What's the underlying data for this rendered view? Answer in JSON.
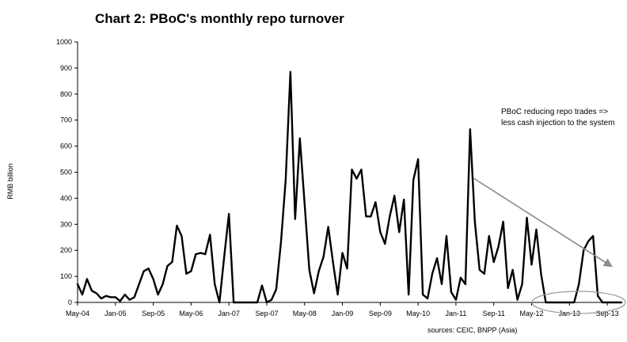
{
  "chart_data": {
    "type": "line",
    "title": "Chart 2: PBoC's monthly repo turnover",
    "ylabel": "RMB billion",
    "xlabel": "",
    "ylim": [
      0,
      1000
    ],
    "yticks": [
      0,
      100,
      200,
      300,
      400,
      500,
      600,
      700,
      800,
      900,
      1000
    ],
    "xtick_labels": [
      "May-04",
      "Jan-05",
      "Sep-05",
      "May-06",
      "Jan-07",
      "Sep-07",
      "May-08",
      "Jan-09",
      "Sep-09",
      "May-10",
      "Jan-11",
      "Sep-11",
      "May-12",
      "Jan-13",
      "Sep-13"
    ],
    "start_month": "May-04",
    "end_month": "Dec-13",
    "series": [
      {
        "color": "#000000",
        "values": [
          70,
          30,
          90,
          45,
          35,
          15,
          25,
          20,
          20,
          5,
          30,
          10,
          20,
          70,
          120,
          130,
          90,
          30,
          70,
          140,
          155,
          295,
          255,
          110,
          120,
          185,
          190,
          185,
          260,
          70,
          0,
          175,
          340,
          0,
          0,
          0,
          0,
          0,
          0,
          65,
          0,
          10,
          50,
          230,
          470,
          885,
          320,
          630,
          380,
          125,
          35,
          120,
          175,
          290,
          155,
          30,
          190,
          130,
          510,
          475,
          510,
          330,
          330,
          385,
          270,
          225,
          330,
          410,
          270,
          395,
          30,
          470,
          550,
          30,
          15,
          110,
          170,
          70,
          255,
          40,
          10,
          95,
          70,
          665,
          310,
          125,
          110,
          255,
          155,
          215,
          310,
          55,
          125,
          10,
          70,
          325,
          145,
          280,
          110,
          0,
          0,
          0,
          0,
          0,
          0,
          0,
          70,
          200,
          235,
          255,
          25,
          0,
          0,
          0,
          0,
          0
        ]
      }
    ],
    "annotations": [
      {
        "line1": "PBoC reducing repo trades =>",
        "line2": "less cash injection to the system"
      }
    ],
    "arrow_color": "#8c8c8c",
    "highlight_ellipse_color": "#999999",
    "source": "sources: CEIC, BNPP (Asia)",
    "grid": false,
    "legend": "none"
  }
}
